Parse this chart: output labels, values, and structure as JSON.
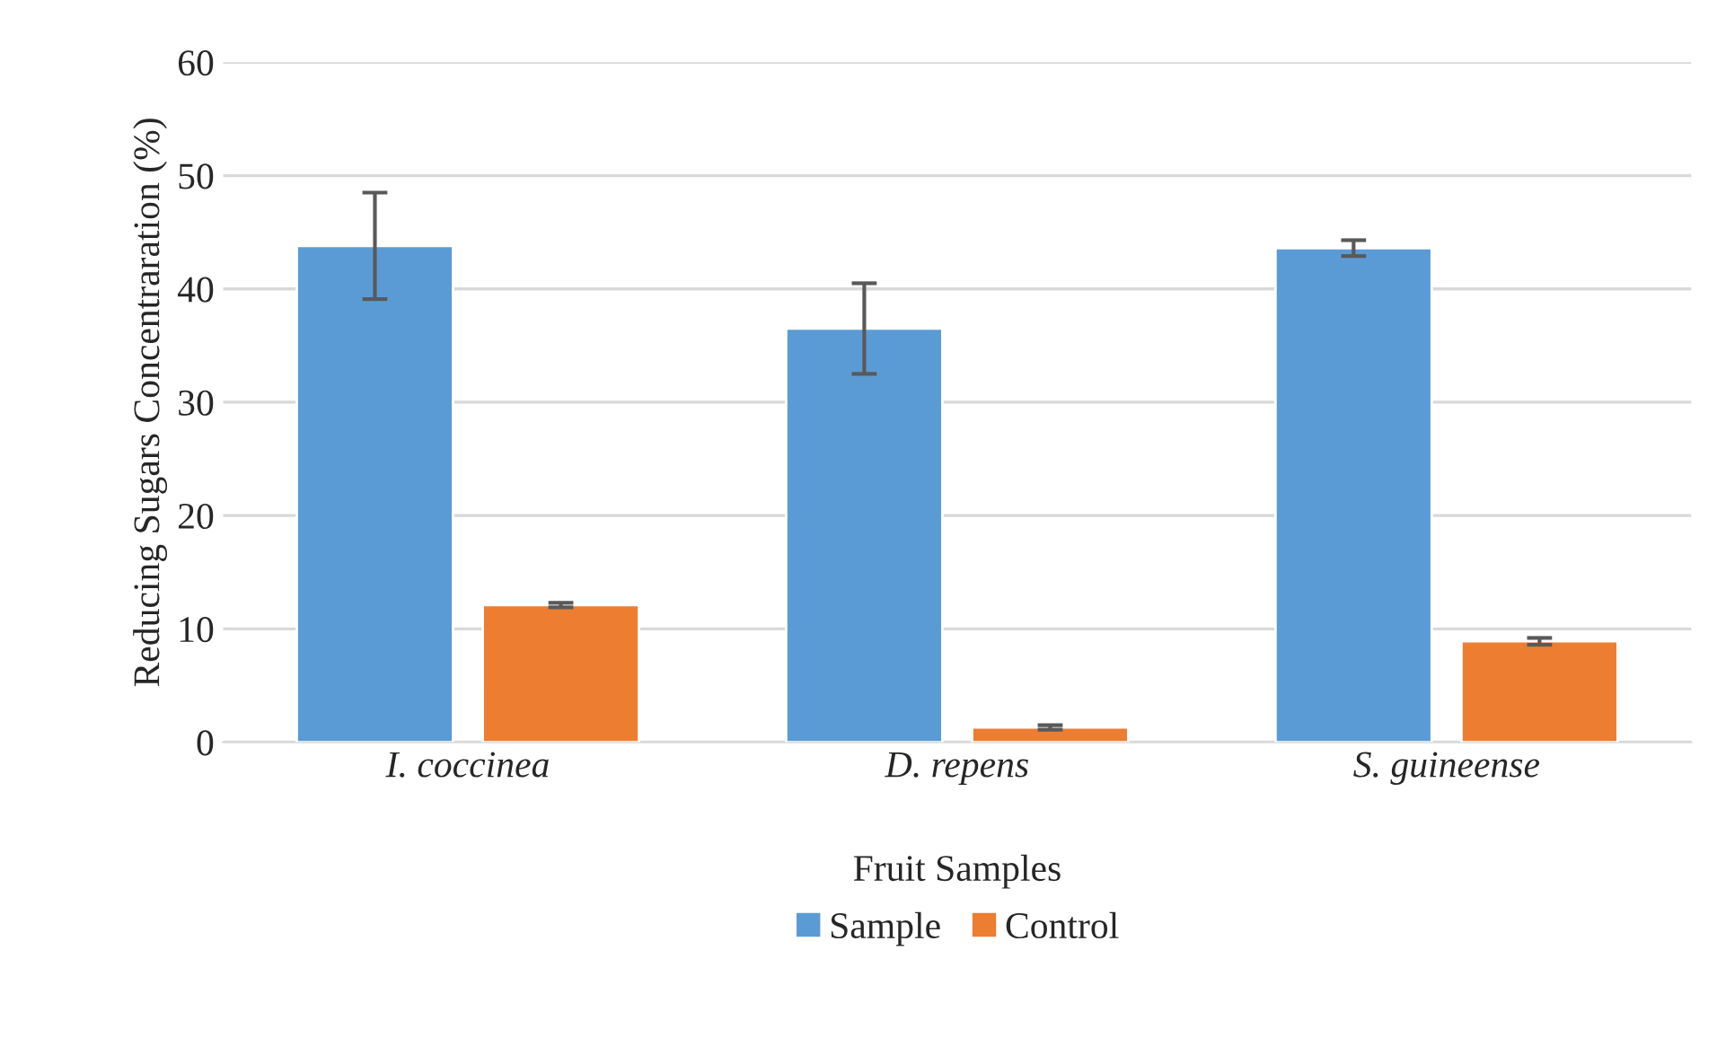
{
  "chart_data": {
    "type": "bar",
    "xlabel": "Fruit Samples",
    "ylabel": "Reducing Sugars Concentraration (%)",
    "categories": [
      "I. coccinea",
      "D. repens",
      "S. guineense"
    ],
    "series": [
      {
        "name": "Sample",
        "color": "#5b9bd5",
        "values": [
          43.8,
          36.5,
          43.6
        ],
        "errors": [
          4.7,
          4.0,
          0.7
        ]
      },
      {
        "name": "Control",
        "color": "#ed7d31",
        "values": [
          12.1,
          1.3,
          8.9
        ],
        "errors": [
          0.2,
          0.2,
          0.3
        ]
      }
    ],
    "ylim": [
      0,
      60
    ],
    "yticks": [
      0,
      10,
      20,
      30,
      40,
      50,
      60
    ],
    "grid": "y",
    "legend": "bottom"
  }
}
